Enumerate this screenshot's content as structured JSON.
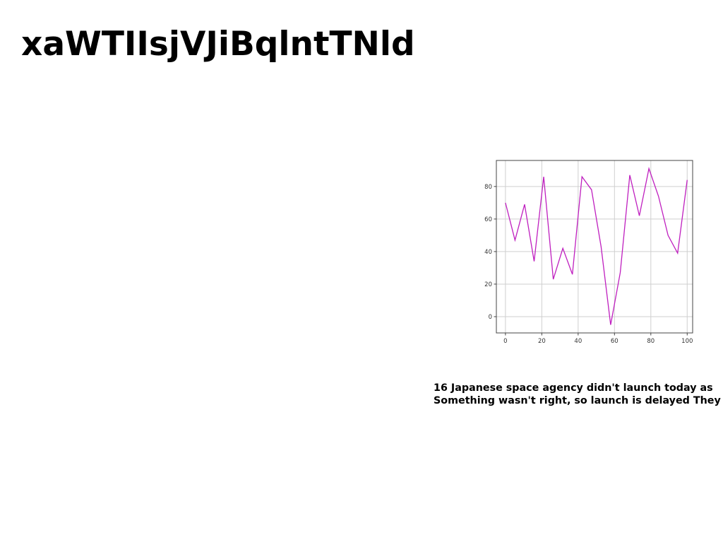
{
  "title": "xaWTIIsjVJiBqlntTNld",
  "caption": {
    "line1": "16 Japanese space agency didn't launch today as",
    "line2": "Something wasn't right, so launch is delayed They"
  },
  "chart_data": {
    "type": "line",
    "title": "",
    "xlabel": "",
    "ylabel": "",
    "xlim": [
      -5,
      103
    ],
    "ylim": [
      -10,
      96
    ],
    "xticks": [
      0,
      20,
      40,
      60,
      80,
      100
    ],
    "yticks": [
      0,
      20,
      40,
      60,
      80
    ],
    "grid": true,
    "legend": "none",
    "color": "#bf1fbf",
    "series": [
      {
        "x": [
          0,
          5.26,
          10.53,
          15.79,
          21.05,
          26.32,
          31.58,
          36.84,
          42.11,
          47.37,
          52.63,
          57.89,
          63.16,
          68.42,
          73.68,
          78.95,
          84.21,
          89.47,
          94.74,
          100
        ],
        "values": [
          70,
          47,
          69,
          34,
          86,
          23,
          42,
          26,
          86,
          78,
          43,
          -5,
          27,
          87,
          62,
          91,
          74,
          50,
          39,
          84
        ]
      }
    ]
  }
}
